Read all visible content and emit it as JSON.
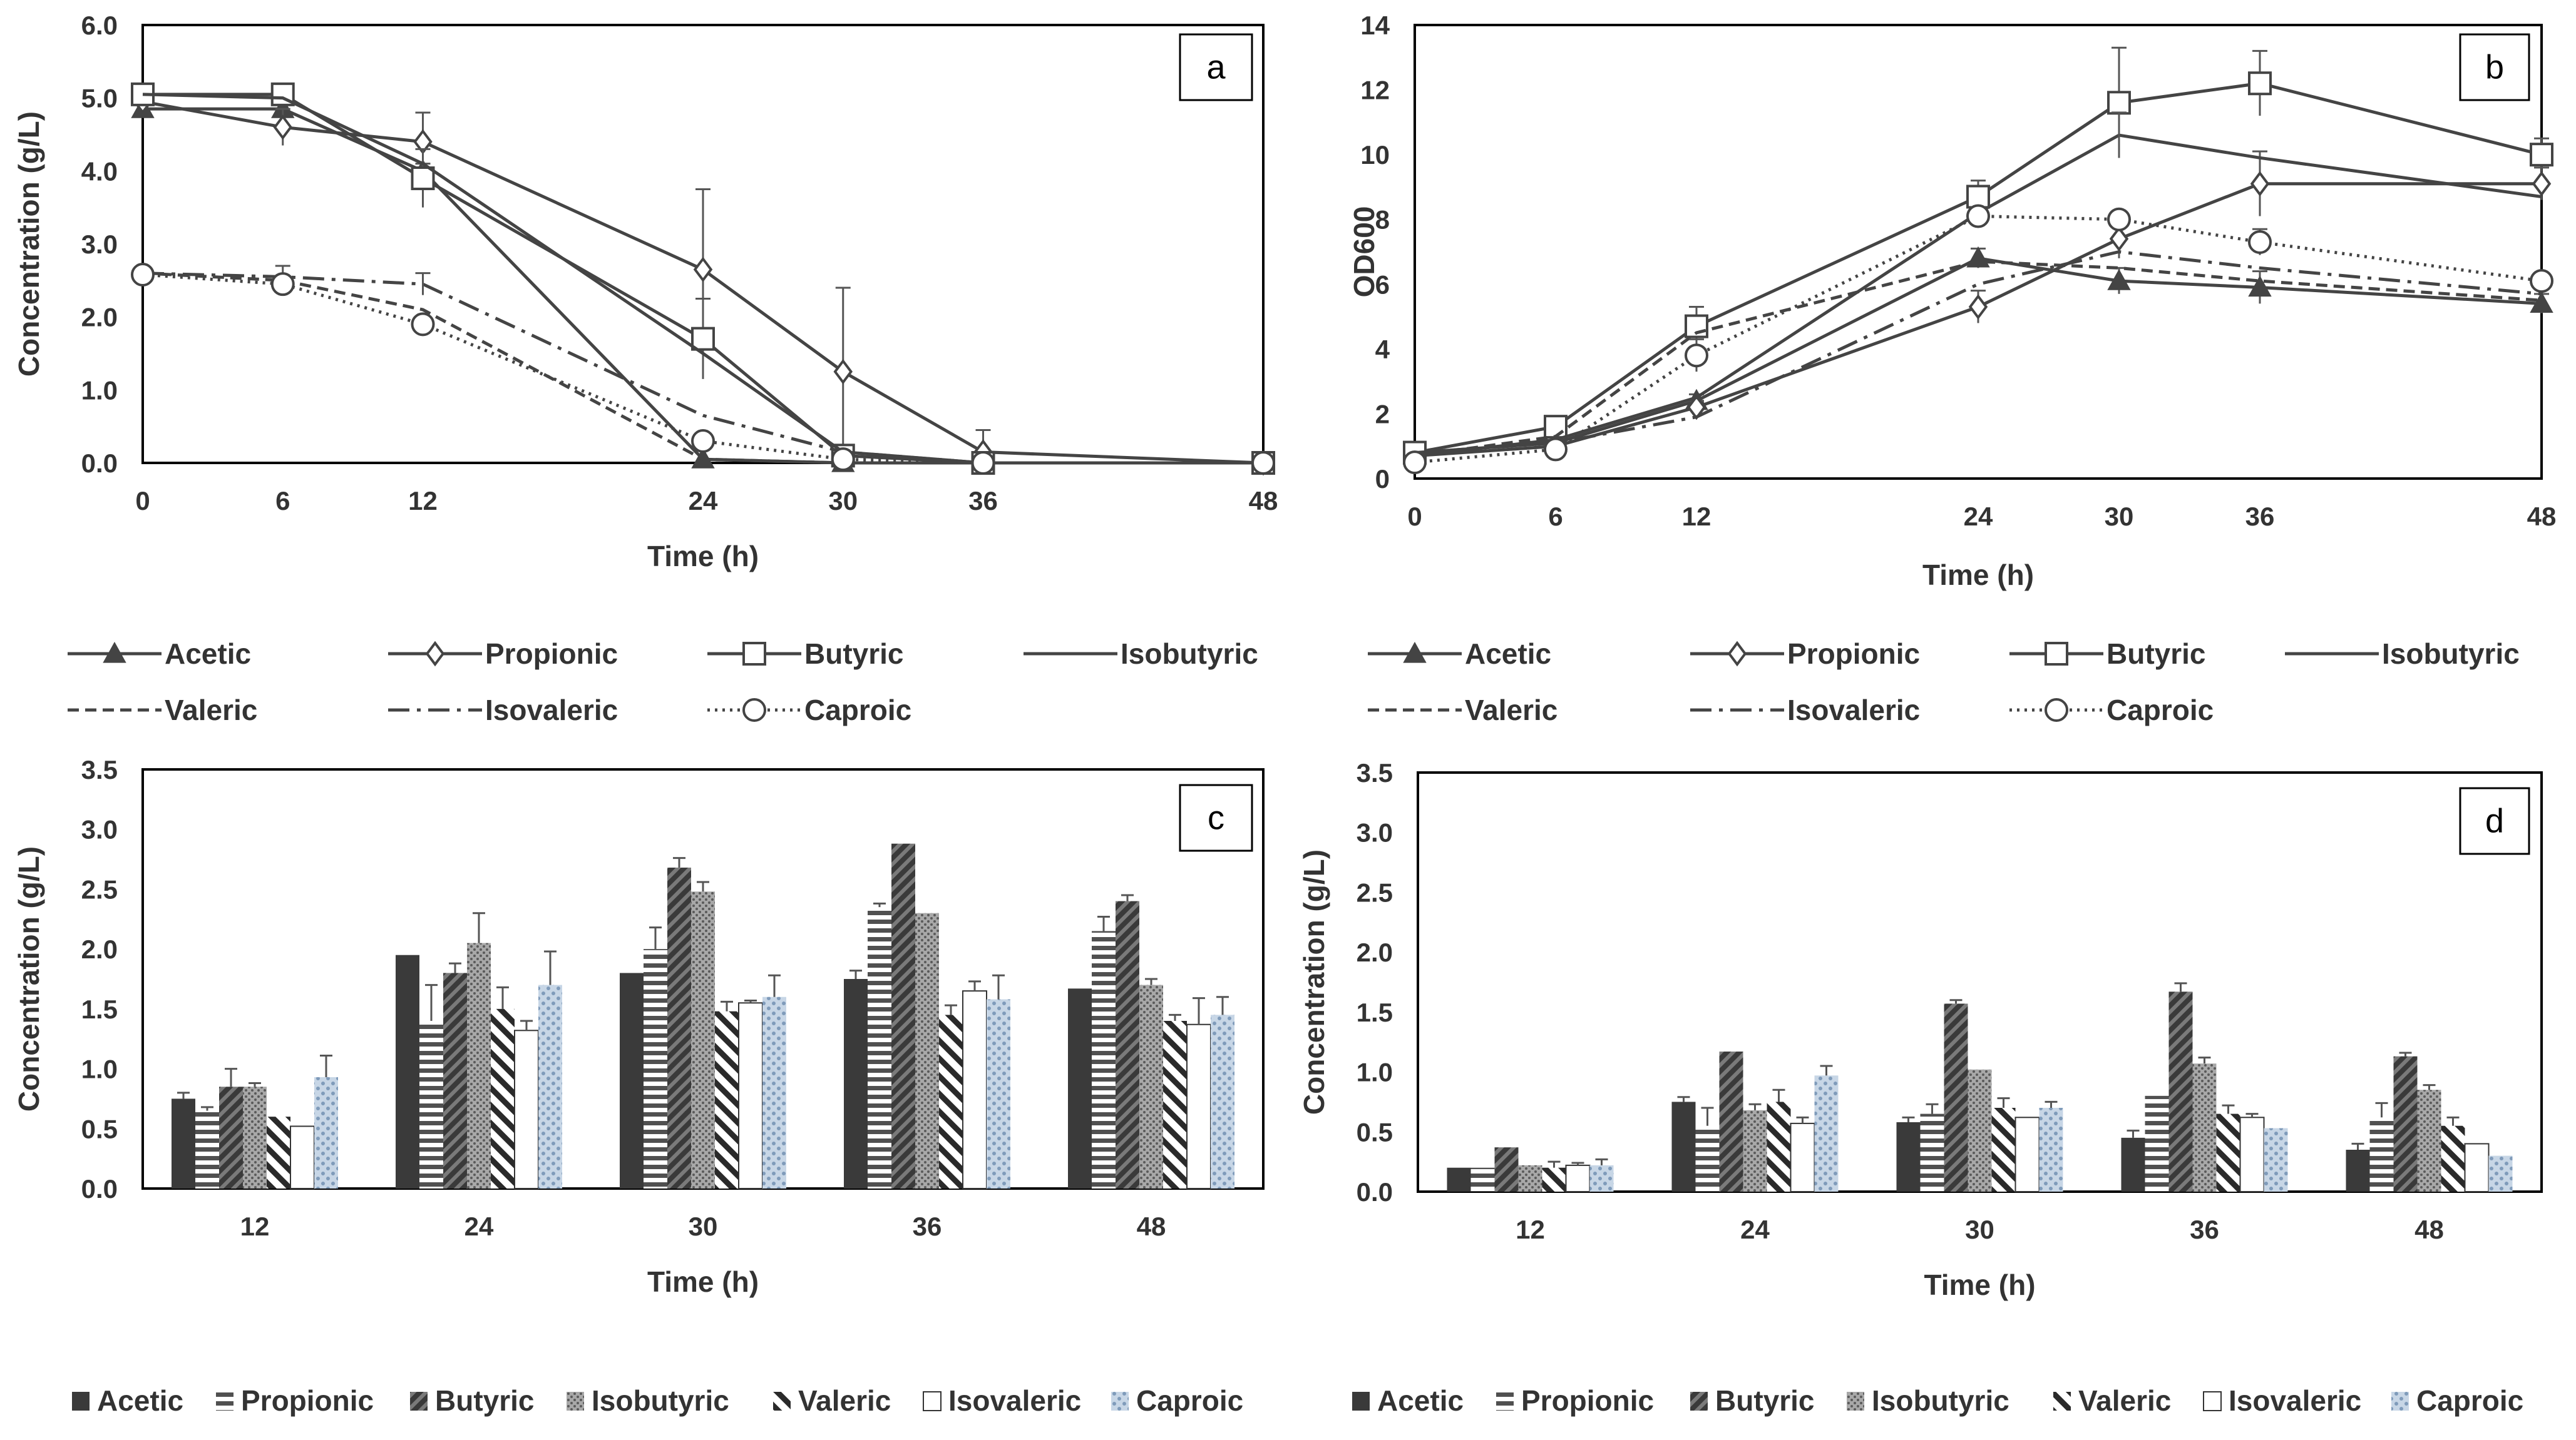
{
  "panel_styles": {
    "line_series": {
      "Acetic": {
        "marker": "triangle",
        "dash": ""
      },
      "Propionic": {
        "marker": "diamond",
        "dash": ""
      },
      "Butyric": {
        "marker": "square",
        "dash": ""
      },
      "Isobutyric": {
        "marker": "none",
        "dash": ""
      },
      "Valeric": {
        "marker": "none",
        "dash": "dashed"
      },
      "Isovaleric": {
        "marker": "none",
        "dash": "dashdot"
      },
      "Caproic": {
        "marker": "circle",
        "dash": "dotted"
      }
    },
    "bar_series": {
      "Acetic": {
        "pattern": "solid",
        "color": "#3a3a3a"
      },
      "Propionic": {
        "pattern": "hstripes",
        "color": "#505050"
      },
      "Butyric": {
        "pattern": "diagstripes",
        "color": "#4a4a4a"
      },
      "Isobutyric": {
        "pattern": "dots",
        "color": "#8a8a8a"
      },
      "Valeric": {
        "pattern": "backdiag",
        "color": "#333333"
      },
      "Isovaleric": {
        "pattern": "white",
        "color": "#ffffff"
      },
      "Caproic": {
        "pattern": "bluedots",
        "color": "#9db4cc"
      }
    }
  },
  "chart_data": [
    {
      "panel": "a",
      "type": "line",
      "xlabel": "Time (h)",
      "ylabel": "Concentration (g/L)",
      "x": [
        0,
        6,
        12,
        24,
        30,
        36,
        48
      ],
      "xticks": [
        "0",
        "6",
        "12",
        "24",
        "30",
        "36",
        "48"
      ],
      "ylim": [
        0,
        6
      ],
      "yticks": [
        "0.0",
        "1.0",
        "2.0",
        "3.0",
        "4.0",
        "5.0",
        "6.0"
      ],
      "series": [
        {
          "name": "Acetic",
          "values": [
            4.85,
            4.85,
            4.0,
            0.05,
            0.0,
            0.0,
            0.0
          ],
          "err": [
            0.1,
            0.1,
            0.1,
            0,
            0,
            0,
            0
          ]
        },
        {
          "name": "Propionic",
          "values": [
            4.95,
            4.6,
            4.4,
            2.65,
            1.25,
            0.15,
            0.0
          ],
          "err": [
            0.1,
            0.25,
            0.4,
            1.1,
            1.15,
            0.3,
            0
          ]
        },
        {
          "name": "Butyric",
          "values": [
            5.05,
            5.05,
            3.9,
            1.7,
            0.1,
            0.0,
            0.0
          ],
          "err": [
            0.1,
            0.1,
            0.4,
            0.55,
            0.1,
            0,
            0
          ]
        },
        {
          "name": "Isobutyric",
          "values": [
            5.05,
            5.0,
            4.1,
            1.5,
            0.15,
            0.0,
            0.0
          ],
          "err": [
            0,
            0,
            0,
            0,
            0,
            0,
            0
          ]
        },
        {
          "name": "Valeric",
          "values": [
            2.6,
            2.5,
            2.1,
            0.05,
            0.0,
            0.0,
            0.0
          ],
          "err": [
            0,
            0,
            0,
            0,
            0,
            0,
            0
          ]
        },
        {
          "name": "Isovaleric",
          "values": [
            2.6,
            2.55,
            2.45,
            0.65,
            0.15,
            0.0,
            0.0
          ],
          "err": [
            0,
            0.15,
            0.15,
            0,
            0,
            0,
            0
          ]
        },
        {
          "name": "Caproic",
          "values": [
            2.58,
            2.45,
            1.9,
            0.3,
            0.05,
            0.0,
            0.0
          ],
          "err": [
            0,
            0.1,
            0.1,
            0.1,
            0,
            0,
            0
          ]
        }
      ],
      "legend": [
        "Acetic",
        "Propionic",
        "Butyric",
        "Isobutyric",
        "Valeric",
        "Isovaleric",
        "Caproic"
      ]
    },
    {
      "panel": "b",
      "type": "line",
      "xlabel": "Time (h)",
      "ylabel": "OD600",
      "x": [
        0,
        6,
        12,
        24,
        30,
        36,
        48
      ],
      "xticks": [
        "0",
        "6",
        "12",
        "24",
        "30",
        "36",
        "48"
      ],
      "ylim": [
        0,
        14
      ],
      "yticks": [
        "0",
        "2",
        "4",
        "6",
        "8",
        "10",
        "12",
        "14"
      ],
      "series": [
        {
          "name": "Acetic",
          "values": [
            0.8,
            1.1,
            2.4,
            6.8,
            6.1,
            5.9,
            5.4
          ],
          "err": [
            0,
            0,
            0.2,
            0.3,
            0.4,
            0.5,
            0.3
          ]
        },
        {
          "name": "Propionic",
          "values": [
            0.7,
            1.0,
            2.2,
            5.3,
            7.4,
            9.1,
            9.1
          ],
          "err": [
            0,
            0,
            0.2,
            0.5,
            0.6,
            1.0,
            0.5
          ]
        },
        {
          "name": "Butyric",
          "values": [
            0.8,
            1.6,
            4.7,
            8.7,
            11.6,
            12.2,
            10.0
          ],
          "err": [
            0.1,
            0.1,
            0.6,
            0.5,
            1.7,
            1.0,
            0.5
          ]
        },
        {
          "name": "Isobutyric",
          "values": [
            0.7,
            1.2,
            2.5,
            8.2,
            10.6,
            9.9,
            8.7
          ],
          "err": [
            0,
            0,
            0,
            0,
            0.7,
            0,
            0
          ]
        },
        {
          "name": "Valeric",
          "values": [
            0.7,
            1.3,
            4.5,
            6.7,
            6.5,
            6.1,
            5.5
          ],
          "err": [
            0,
            0,
            0,
            0,
            0,
            0,
            0
          ]
        },
        {
          "name": "Isovaleric",
          "values": [
            0.8,
            1.1,
            1.9,
            6.0,
            7.0,
            6.5,
            5.7
          ],
          "err": [
            0,
            0,
            0,
            0,
            0,
            0,
            0
          ]
        },
        {
          "name": "Caproic",
          "values": [
            0.5,
            0.9,
            3.8,
            8.1,
            8.0,
            7.3,
            6.1
          ],
          "err": [
            0,
            0,
            0.5,
            0,
            0,
            0.4,
            0
          ]
        }
      ],
      "legend": [
        "Acetic",
        "Propionic",
        "Butyric",
        "Isobutyric",
        "Valeric",
        "Isovaleric",
        "Caproic"
      ]
    },
    {
      "panel": "c",
      "type": "bar",
      "xlabel": "Time (h)",
      "ylabel": "Concentration (g/L)",
      "categories": [
        "12",
        "24",
        "30",
        "36",
        "48"
      ],
      "ylim": [
        0,
        3.5
      ],
      "yticks": [
        "0.0",
        "0.5",
        "1.0",
        "1.5",
        "2.0",
        "2.5",
        "3.0",
        "3.5"
      ],
      "series": [
        {
          "name": "Acetic",
          "values": [
            0.75,
            1.95,
            1.8,
            1.75,
            1.67
          ],
          "err": [
            0.05,
            0,
            0,
            0.07,
            0
          ]
        },
        {
          "name": "Propionic",
          "values": [
            0.65,
            1.4,
            2.0,
            2.35,
            2.15
          ],
          "err": [
            0.03,
            0.3,
            0.18,
            0.03,
            0.12
          ]
        },
        {
          "name": "Butyric",
          "values": [
            0.85,
            1.8,
            2.68,
            2.88,
            2.4
          ],
          "err": [
            0.15,
            0.08,
            0.08,
            0,
            0.05
          ]
        },
        {
          "name": "Isobutyric",
          "values": [
            0.85,
            2.05,
            2.48,
            2.3,
            1.7
          ],
          "err": [
            0.03,
            0.25,
            0.08,
            0,
            0.05
          ]
        },
        {
          "name": "Valeric",
          "values": [
            0.6,
            1.5,
            1.48,
            1.45,
            1.4
          ],
          "err": [
            0,
            0.18,
            0.08,
            0.08,
            0.05
          ]
        },
        {
          "name": "Isovaleric",
          "values": [
            0.52,
            1.32,
            1.55,
            1.65,
            1.37
          ],
          "err": [
            0,
            0.08,
            0.02,
            0.08,
            0.22
          ]
        },
        {
          "name": "Caproic",
          "values": [
            0.93,
            1.7,
            1.6,
            1.58,
            1.45
          ],
          "err": [
            0.18,
            0.28,
            0.18,
            0.2,
            0.15
          ]
        }
      ],
      "legend": [
        "Acetic",
        "Propionic",
        "Butyric",
        "Isobutyric",
        "Valeric",
        "Isovaleric",
        "Caproic"
      ]
    },
    {
      "panel": "d",
      "type": "bar",
      "xlabel": "Time (h)",
      "ylabel": "Concentration (g/L)",
      "categories": [
        "12",
        "24",
        "30",
        "36",
        "48"
      ],
      "ylim": [
        0,
        3.5
      ],
      "yticks": [
        "0.0",
        "0.5",
        "1.0",
        "1.5",
        "2.0",
        "2.5",
        "3.0",
        "3.5"
      ],
      "series": [
        {
          "name": "Acetic",
          "values": [
            0.2,
            0.75,
            0.58,
            0.45,
            0.35
          ],
          "err": [
            0,
            0.04,
            0.04,
            0.06,
            0.05
          ]
        },
        {
          "name": "Propionic",
          "values": [
            0.2,
            0.55,
            0.65,
            0.8,
            0.62
          ],
          "err": [
            0,
            0.15,
            0.08,
            0,
            0.12
          ]
        },
        {
          "name": "Butyric",
          "values": [
            0.37,
            1.17,
            1.57,
            1.67,
            1.13
          ],
          "err": [
            0,
            0,
            0.03,
            0.07,
            0.03
          ]
        },
        {
          "name": "Isobutyric",
          "values": [
            0.22,
            0.68,
            1.02,
            1.07,
            0.85
          ],
          "err": [
            0,
            0.05,
            0,
            0.05,
            0.04
          ]
        },
        {
          "name": "Valeric",
          "values": [
            0.2,
            0.75,
            0.7,
            0.65,
            0.55
          ],
          "err": [
            0.05,
            0.1,
            0.08,
            0.07,
            0.07
          ]
        },
        {
          "name": "Isovaleric",
          "values": [
            0.22,
            0.57,
            0.62,
            0.62,
            0.4
          ],
          "err": [
            0.02,
            0.05,
            0,
            0.03,
            0
          ]
        },
        {
          "name": "Caproic",
          "values": [
            0.22,
            0.97,
            0.7,
            0.53,
            0.3
          ],
          "err": [
            0.05,
            0.08,
            0.05,
            0,
            0
          ]
        }
      ],
      "legend": [
        "Acetic",
        "Propionic",
        "Butyric",
        "Isobutyric",
        "Valeric",
        "Isovaleric",
        "Caproic"
      ]
    }
  ]
}
